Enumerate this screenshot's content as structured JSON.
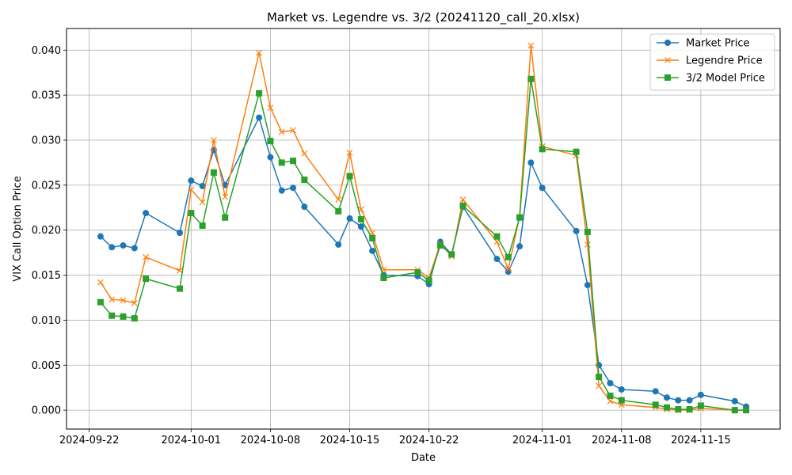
{
  "chart_data": {
    "type": "line",
    "title": "Market vs. Legendre vs. 3/2 (20241120_call_20.xlsx)",
    "xlabel": "Date",
    "ylabel": "VIX Call Option Price",
    "xlim": [
      "2024-09-20",
      "2024-11-22"
    ],
    "ylim": [
      -0.0021,
      0.0424
    ],
    "x_ticks": [
      "2024-09-22",
      "2024-10-01",
      "2024-10-08",
      "2024-10-15",
      "2024-10-22",
      "2024-11-01",
      "2024-11-08",
      "2024-11-15"
    ],
    "y_ticks": [
      "0.000",
      "0.005",
      "0.010",
      "0.015",
      "0.020",
      "0.025",
      "0.030",
      "0.035",
      "0.040"
    ],
    "grid": true,
    "legend": "top-right",
    "series": [
      {
        "name": "Market Price",
        "color": "#1f77b4",
        "marker": "circle",
        "points": [
          [
            "2024-09-23",
            0.0193
          ],
          [
            "2024-09-24",
            0.0181
          ],
          [
            "2024-09-25",
            0.0183
          ],
          [
            "2024-09-26",
            0.018
          ],
          [
            "2024-09-27",
            0.0219
          ],
          [
            "2024-09-30",
            0.0197
          ],
          [
            "2024-10-01",
            0.0255
          ],
          [
            "2024-10-02",
            0.0249
          ],
          [
            "2024-10-03",
            0.0289
          ],
          [
            "2024-10-04",
            0.025
          ],
          [
            "2024-10-07",
            0.0325
          ],
          [
            "2024-10-08",
            0.0281
          ],
          [
            "2024-10-09",
            0.0244
          ],
          [
            "2024-10-10",
            0.0247
          ],
          [
            "2024-10-11",
            0.0226
          ],
          [
            "2024-10-14",
            0.0184
          ],
          [
            "2024-10-15",
            0.0213
          ],
          [
            "2024-10-16",
            0.0204
          ],
          [
            "2024-10-17",
            0.0177
          ],
          [
            "2024-10-18",
            0.015
          ],
          [
            "2024-10-21",
            0.0149
          ],
          [
            "2024-10-22",
            0.014
          ],
          [
            "2024-10-23",
            0.0187
          ],
          [
            "2024-10-24",
            0.0173
          ],
          [
            "2024-10-25",
            0.0226
          ],
          [
            "2024-10-28",
            0.0168
          ],
          [
            "2024-10-29",
            0.0154
          ],
          [
            "2024-10-30",
            0.0182
          ],
          [
            "2024-10-31",
            0.0275
          ],
          [
            "2024-11-01",
            0.0247
          ],
          [
            "2024-11-04",
            0.0199
          ],
          [
            "2024-11-05",
            0.0139
          ],
          [
            "2024-11-06",
            0.005
          ],
          [
            "2024-11-07",
            0.003
          ],
          [
            "2024-11-08",
            0.0023
          ],
          [
            "2024-11-11",
            0.0021
          ],
          [
            "2024-11-12",
            0.0014
          ],
          [
            "2024-11-13",
            0.0011
          ],
          [
            "2024-11-14",
            0.0011
          ],
          [
            "2024-11-15",
            0.0017
          ],
          [
            "2024-11-18",
            0.001
          ],
          [
            "2024-11-19",
            0.0004
          ]
        ]
      },
      {
        "name": "Legendre Price",
        "color": "#ff7f0e",
        "marker": "x",
        "points": [
          [
            "2024-09-23",
            0.0142
          ],
          [
            "2024-09-24",
            0.0123
          ],
          [
            "2024-09-25",
            0.0122
          ],
          [
            "2024-09-26",
            0.0119
          ],
          [
            "2024-09-27",
            0.017
          ],
          [
            "2024-09-30",
            0.0155
          ],
          [
            "2024-10-01",
            0.0245
          ],
          [
            "2024-10-02",
            0.0231
          ],
          [
            "2024-10-03",
            0.03
          ],
          [
            "2024-10-04",
            0.0237
          ],
          [
            "2024-10-07",
            0.0397
          ],
          [
            "2024-10-08",
            0.0336
          ],
          [
            "2024-10-09",
            0.0309
          ],
          [
            "2024-10-10",
            0.0311
          ],
          [
            "2024-10-11",
            0.0285
          ],
          [
            "2024-10-14",
            0.0234
          ],
          [
            "2024-10-15",
            0.0286
          ],
          [
            "2024-10-16",
            0.0223
          ],
          [
            "2024-10-17",
            0.0197
          ],
          [
            "2024-10-18",
            0.0156
          ],
          [
            "2024-10-21",
            0.0156
          ],
          [
            "2024-10-22",
            0.0147
          ],
          [
            "2024-10-23",
            0.0185
          ],
          [
            "2024-10-24",
            0.0171
          ],
          [
            "2024-10-25",
            0.0234
          ],
          [
            "2024-10-28",
            0.0187
          ],
          [
            "2024-10-29",
            0.0157
          ],
          [
            "2024-10-30",
            0.0215
          ],
          [
            "2024-10-31",
            0.0405
          ],
          [
            "2024-11-01",
            0.0293
          ],
          [
            "2024-11-04",
            0.0283
          ],
          [
            "2024-11-05",
            0.0184
          ],
          [
            "2024-11-06",
            0.0027
          ],
          [
            "2024-11-07",
            0.001
          ],
          [
            "2024-11-08",
            0.0006
          ],
          [
            "2024-11-11",
            0.0003
          ],
          [
            "2024-11-12",
            0.0001
          ],
          [
            "2024-11-13",
            0.0
          ],
          [
            "2024-11-14",
            0.0
          ],
          [
            "2024-11-15",
            0.0002
          ],
          [
            "2024-11-18",
            0.0
          ],
          [
            "2024-11-19",
            0.0
          ]
        ]
      },
      {
        "name": "3/2 Model Price",
        "color": "#2ca02c",
        "marker": "square",
        "points": [
          [
            "2024-09-23",
            0.012
          ],
          [
            "2024-09-24",
            0.0105
          ],
          [
            "2024-09-25",
            0.0104
          ],
          [
            "2024-09-26",
            0.0102
          ],
          [
            "2024-09-27",
            0.0146
          ],
          [
            "2024-09-30",
            0.0135
          ],
          [
            "2024-10-01",
            0.0219
          ],
          [
            "2024-10-02",
            0.0205
          ],
          [
            "2024-10-03",
            0.0264
          ],
          [
            "2024-10-04",
            0.0214
          ],
          [
            "2024-10-07",
            0.0352
          ],
          [
            "2024-10-08",
            0.0299
          ],
          [
            "2024-10-09",
            0.0275
          ],
          [
            "2024-10-10",
            0.0277
          ],
          [
            "2024-10-11",
            0.0256
          ],
          [
            "2024-10-14",
            0.0221
          ],
          [
            "2024-10-15",
            0.026
          ],
          [
            "2024-10-16",
            0.0212
          ],
          [
            "2024-10-17",
            0.0191
          ],
          [
            "2024-10-18",
            0.0147
          ],
          [
            "2024-10-21",
            0.0153
          ],
          [
            "2024-10-22",
            0.0144
          ],
          [
            "2024-10-23",
            0.0183
          ],
          [
            "2024-10-24",
            0.0173
          ],
          [
            "2024-10-25",
            0.0227
          ],
          [
            "2024-10-28",
            0.0193
          ],
          [
            "2024-10-29",
            0.017
          ],
          [
            "2024-10-30",
            0.0214
          ],
          [
            "2024-10-31",
            0.0368
          ],
          [
            "2024-11-01",
            0.029
          ],
          [
            "2024-11-04",
            0.0287
          ],
          [
            "2024-11-05",
            0.0198
          ],
          [
            "2024-11-06",
            0.0037
          ],
          [
            "2024-11-07",
            0.0016
          ],
          [
            "2024-11-08",
            0.0011
          ],
          [
            "2024-11-11",
            0.0006
          ],
          [
            "2024-11-12",
            0.0003
          ],
          [
            "2024-11-13",
            0.0001
          ],
          [
            "2024-11-14",
            0.0001
          ],
          [
            "2024-11-15",
            0.0005
          ],
          [
            "2024-11-18",
            0.0
          ],
          [
            "2024-11-19",
            0.0
          ]
        ]
      }
    ]
  }
}
